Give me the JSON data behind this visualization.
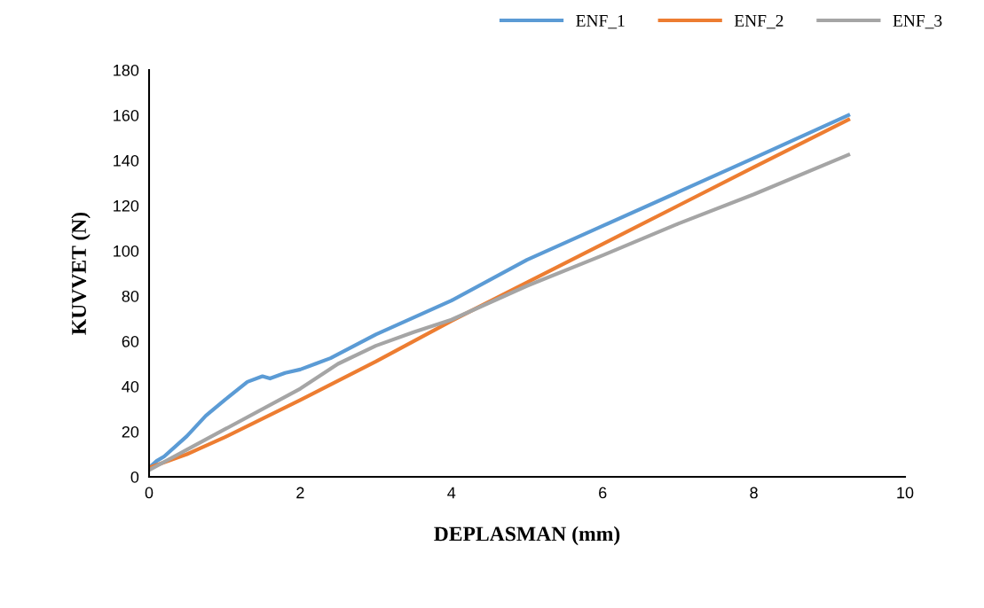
{
  "chart_data": {
    "type": "line",
    "xlabel": "DEPLASMAN (mm)",
    "ylabel": "KUVVET (N)",
    "xlim": [
      0,
      10
    ],
    "xticks": [
      0,
      2,
      4,
      6,
      8,
      10
    ],
    "ylim": [
      0,
      180
    ],
    "yticks": [
      0,
      20,
      40,
      60,
      80,
      100,
      120,
      140,
      160,
      180
    ],
    "grid": false,
    "legend": "top right",
    "marker": "none",
    "line_style": "solid",
    "series": [
      {
        "name": "ENF_1",
        "color": "#5b9bd5",
        "x": [
          0,
          0.1,
          0.2,
          0.5,
          0.75,
          1.0,
          1.3,
          1.5,
          1.6,
          1.8,
          2.0,
          2.2,
          2.4,
          3.0,
          4.0,
          5.0,
          6.0,
          7.0,
          8.0,
          9.25
        ],
        "values": [
          4,
          7,
          9,
          18,
          27,
          34,
          42,
          44.5,
          43.5,
          46,
          47.5,
          50,
          52.5,
          63,
          78,
          96,
          111,
          126,
          141,
          160
        ]
      },
      {
        "name": "ENF_2",
        "color": "#ed7d31",
        "x": [
          0,
          0.5,
          1,
          2,
          3,
          4,
          5,
          6,
          7,
          8,
          9.25
        ],
        "values": [
          4,
          10,
          17.5,
          34,
          51,
          69,
          86,
          103,
          120,
          137,
          158
        ]
      },
      {
        "name": "ENF_3",
        "color": "#a5a5a5",
        "x": [
          0,
          0.5,
          1,
          2,
          2.5,
          3,
          3.5,
          4,
          5,
          6,
          7,
          8,
          9.25
        ],
        "values": [
          3,
          12,
          21,
          39,
          50,
          58,
          64,
          69.5,
          84.5,
          98,
          112,
          125,
          142.5
        ]
      }
    ]
  }
}
